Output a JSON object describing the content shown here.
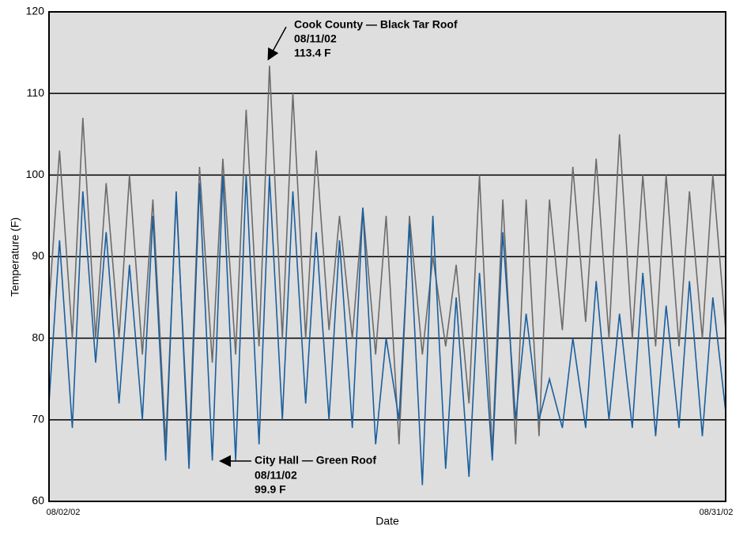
{
  "chart_data": {
    "type": "line",
    "x_label": "Date",
    "y_label": "Temperature (F)",
    "x": [
      0,
      0.45,
      1,
      1.45,
      2,
      2.45,
      3,
      3.45,
      4,
      4.45,
      5,
      5.45,
      6,
      6.45,
      7,
      7.45,
      8,
      8.45,
      9,
      9.45,
      10,
      10.45,
      11,
      11.45,
      12,
      12.45,
      13,
      13.45,
      14,
      14.45,
      15,
      15.45,
      16,
      16.45,
      17,
      17.45,
      18,
      18.45,
      19,
      19.45,
      20,
      20.45,
      21,
      21.45,
      22,
      22.45,
      23,
      23.45,
      24,
      24.45,
      25,
      25.45,
      26,
      26.45,
      27,
      27.45,
      28,
      28.45,
      29
    ],
    "xlim": [
      0,
      29
    ],
    "xticks": [
      {
        "value": 0,
        "label": "08/02/02"
      },
      {
        "value": 29,
        "label": "08/31/02"
      }
    ],
    "ylim": [
      60,
      120
    ],
    "yticks": [
      60,
      70,
      80,
      90,
      100,
      110,
      120
    ],
    "grid": true,
    "series": [
      {
        "name": "Cook County — Black Tar Roof",
        "color": "#6b6b6b",
        "values": [
          84,
          103,
          80,
          107,
          80,
          99,
          80,
          100,
          78,
          97,
          67,
          97,
          66,
          101,
          77,
          102,
          78,
          108,
          79,
          113.4,
          80,
          110,
          80,
          103,
          81,
          95,
          80,
          96,
          78,
          95,
          67,
          95,
          78,
          90,
          79,
          89,
          72,
          100,
          66,
          97,
          67,
          97,
          68,
          97,
          81,
          101,
          82,
          102,
          80,
          105,
          80,
          100,
          79,
          100,
          79,
          98,
          80,
          100,
          81
        ]
      },
      {
        "name": "City Hall — Green Roof",
        "color": "#1a5f9e",
        "values": [
          72,
          92,
          69,
          98,
          77,
          93,
          72,
          89,
          70,
          95,
          65,
          98,
          64,
          99,
          65,
          100,
          65,
          100,
          67,
          99.9,
          70,
          98,
          72,
          93,
          70,
          92,
          69,
          96,
          67,
          80,
          70,
          94,
          62,
          95,
          64,
          85,
          63,
          88,
          65,
          93,
          70,
          83,
          70,
          75,
          69,
          80,
          69,
          87,
          70,
          83,
          69,
          88,
          68,
          84,
          69,
          87,
          68,
          85,
          71
        ]
      }
    ],
    "annotations": [
      {
        "lines": [
          "Cook County — Black Tar Roof",
          "08/11/02",
          "113.4 F"
        ]
      },
      {
        "lines": [
          "City Hall — Green Roof",
          "08/11/02",
          "99.9 F"
        ]
      }
    ]
  }
}
